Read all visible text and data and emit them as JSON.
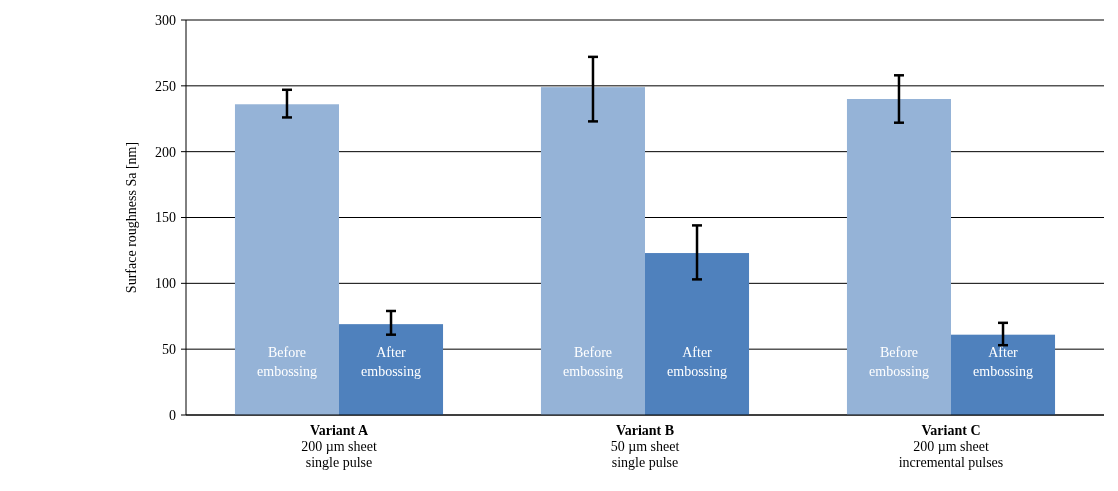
{
  "chart_data": {
    "type": "bar",
    "ylabel": "Surface roughness Sa [nm]",
    "categories": [
      "Variant A\n200 µm sheet\nsingle pulse",
      "Variant B\n50 µm sheet\nsingle pulse",
      "Variant C\n200 µm sheet\nincremental pulses"
    ],
    "series": [
      {
        "name": "Before embossing",
        "color": "#95b3d7",
        "values": [
          236,
          249,
          240
        ],
        "errors": [
          [
            226,
            247
          ],
          [
            223,
            272
          ],
          [
            222,
            258
          ]
        ]
      },
      {
        "name": "After embossing",
        "color": "#4f81bd",
        "values": [
          69,
          123,
          61
        ],
        "errors": [
          [
            61,
            79
          ],
          [
            103,
            144
          ],
          [
            53,
            70
          ]
        ]
      }
    ],
    "ylim": [
      0,
      300
    ],
    "yticks": [
      0,
      50,
      100,
      150,
      200,
      250,
      300
    ],
    "grid": "y"
  }
}
